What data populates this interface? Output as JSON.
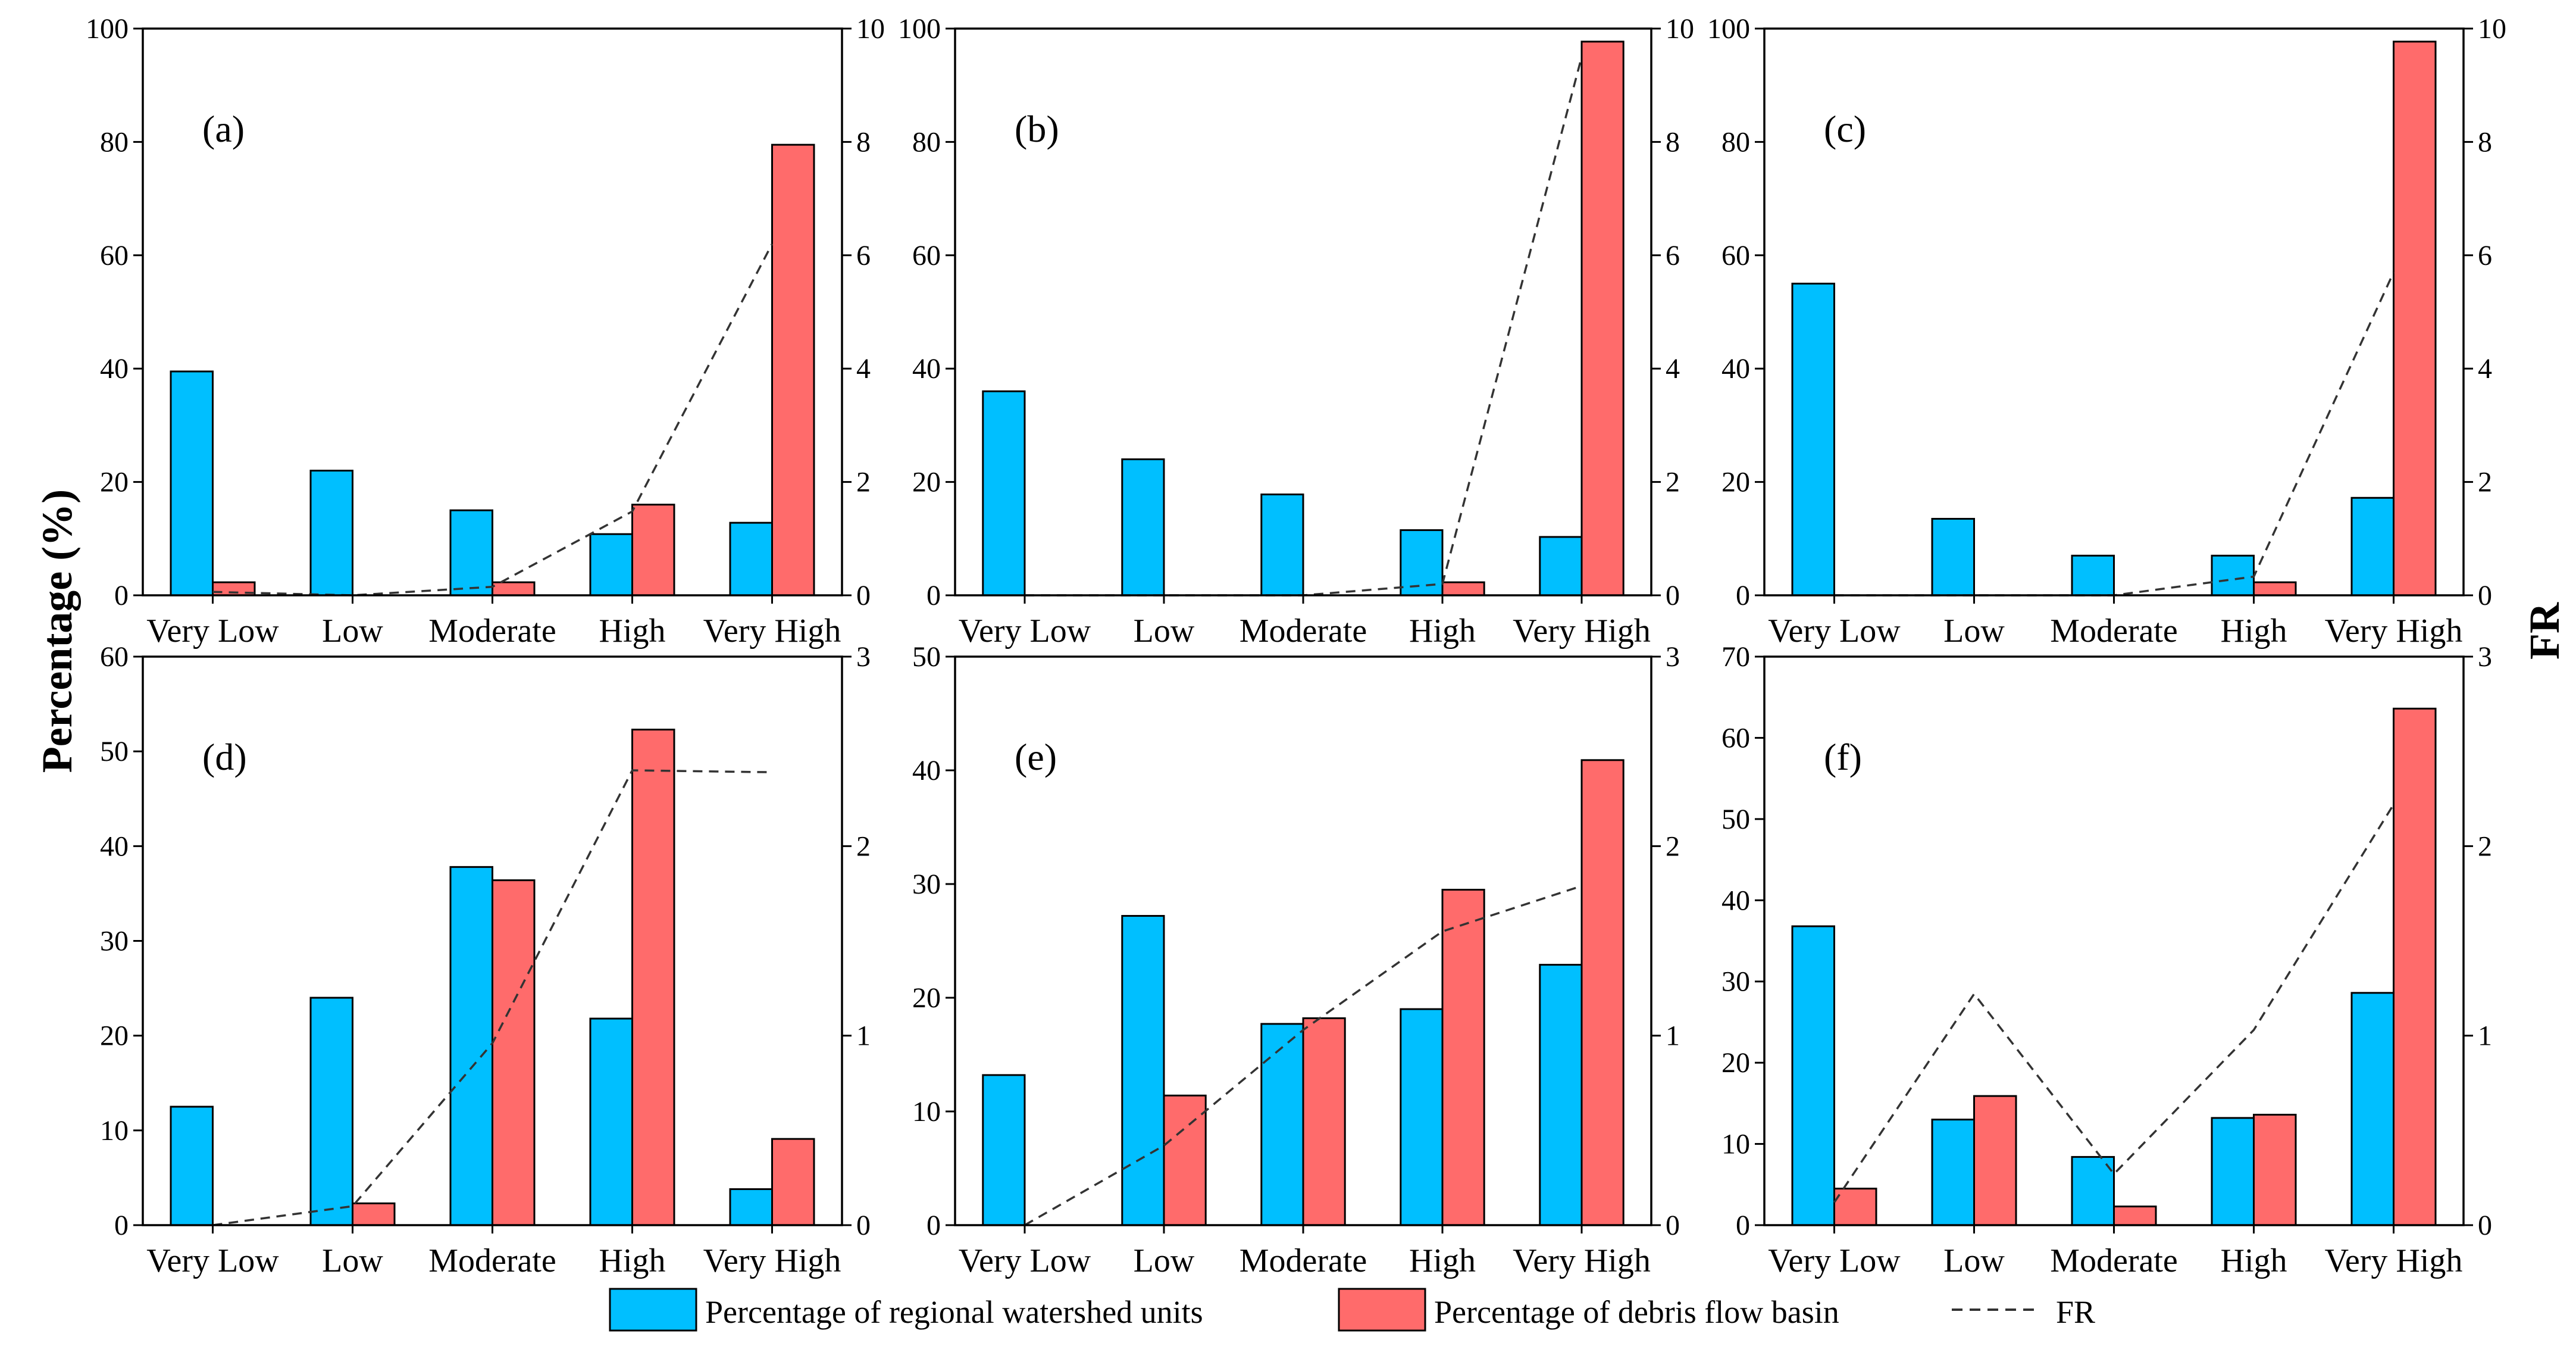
{
  "chart_data": {
    "type": "bar",
    "y_title": "Percentage (%)",
    "y2_title": "FR",
    "categories": [
      "Very Low",
      "Low",
      "Moderate",
      "High",
      "Very High"
    ],
    "legend": {
      "watershed": "Percentage of regional watershed units",
      "debris": "Percentage of debris flow basin",
      "fr": "FR",
      "placement": "bottom-center"
    },
    "colors": {
      "watershed": "#00BFFF",
      "debris": "#FF6B6B",
      "fr": "#333333"
    },
    "panels": [
      {
        "tag": "(a)",
        "ylim": [
          0,
          100
        ],
        "yticks": [
          0,
          20,
          40,
          60,
          80,
          100
        ],
        "y2lim": [
          0,
          10
        ],
        "y2ticks": [
          0,
          2,
          4,
          6,
          8,
          10
        ],
        "watershed": [
          39.5,
          22,
          15,
          10.8,
          12.8
        ],
        "debris": [
          2.3,
          0,
          2.3,
          16,
          79.5
        ],
        "fr": [
          0.06,
          0,
          0.15,
          1.48,
          6.2
        ]
      },
      {
        "tag": "(b)",
        "ylim": [
          0,
          100
        ],
        "yticks": [
          0,
          20,
          40,
          60,
          80,
          100
        ],
        "y2lim": [
          0,
          10
        ],
        "y2ticks": [
          0,
          2,
          4,
          6,
          8,
          10
        ],
        "watershed": [
          36,
          24,
          17.8,
          11.5,
          10.3
        ],
        "debris": [
          0,
          0,
          0,
          2.3,
          97.7
        ],
        "fr": [
          0,
          0,
          0,
          0.2,
          9.5
        ]
      },
      {
        "tag": "(c)",
        "ylim": [
          0,
          100
        ],
        "yticks": [
          0,
          20,
          40,
          60,
          80,
          100
        ],
        "y2lim": [
          0,
          10
        ],
        "y2ticks": [
          0,
          2,
          4,
          6,
          8,
          10
        ],
        "watershed": [
          55,
          13.5,
          7,
          7,
          17.2
        ],
        "debris": [
          0,
          0,
          0,
          2.3,
          97.7
        ],
        "fr": [
          0,
          0,
          0,
          0.33,
          5.7
        ]
      },
      {
        "tag": "(d)",
        "ylim": [
          0,
          60
        ],
        "yticks": [
          0,
          10,
          20,
          30,
          40,
          50,
          60
        ],
        "y2lim": [
          0,
          3
        ],
        "y2ticks": [
          0,
          1,
          2,
          3
        ],
        "watershed": [
          12.5,
          24,
          37.8,
          21.8,
          3.8
        ],
        "debris": [
          0,
          2.3,
          36.4,
          52.3,
          9.1
        ],
        "fr": [
          0,
          0.1,
          0.96,
          2.4,
          2.39
        ]
      },
      {
        "tag": "(e)",
        "ylim": [
          0,
          50
        ],
        "yticks": [
          0,
          10,
          20,
          30,
          40,
          50
        ],
        "y2lim": [
          0,
          3
        ],
        "y2ticks": [
          0,
          1,
          2,
          3
        ],
        "watershed": [
          13.2,
          27.2,
          17.7,
          19,
          22.9
        ],
        "debris": [
          0,
          11.4,
          18.2,
          29.5,
          40.9
        ],
        "fr": [
          0,
          0.42,
          1.03,
          1.55,
          1.79
        ]
      },
      {
        "tag": "(f)",
        "ylim": [
          0,
          70
        ],
        "yticks": [
          0,
          10,
          20,
          30,
          40,
          50,
          60,
          70
        ],
        "y2lim": [
          0,
          3
        ],
        "y2ticks": [
          0,
          1,
          2,
          3
        ],
        "watershed": [
          36.8,
          13,
          8.4,
          13.2,
          28.6
        ],
        "debris": [
          4.5,
          15.9,
          2.3,
          13.6,
          63.6
        ],
        "fr": [
          0.12,
          1.22,
          0.27,
          1.03,
          2.22
        ]
      }
    ]
  }
}
